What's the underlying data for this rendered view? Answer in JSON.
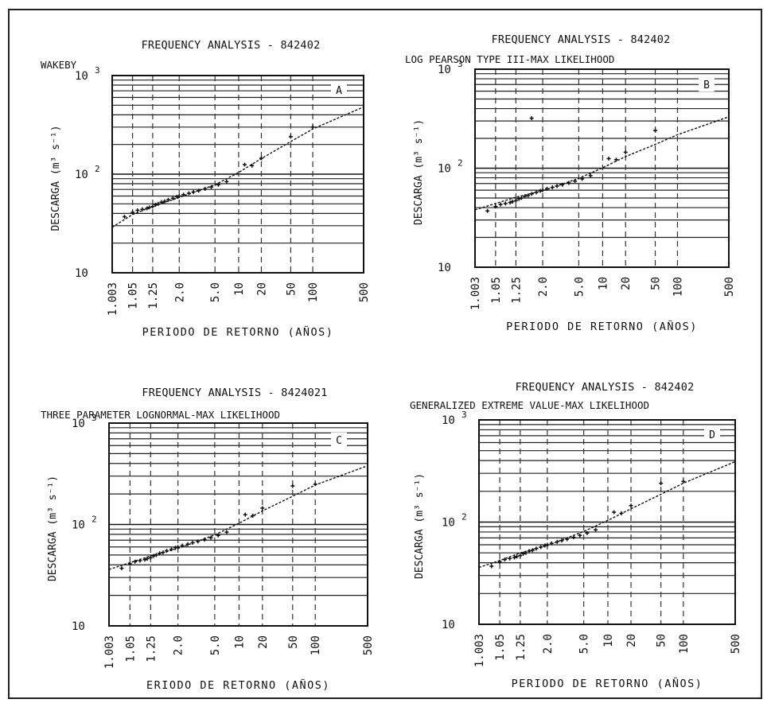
{
  "panels": [
    {
      "title": "FREQUENCY ANALYSIS - 842402",
      "subtitle": "WAKEBY",
      "ylabel": "DESCARGA (m³ s⁻¹)",
      "xlabel": "PERIODO DE RETORNO (AÑOS)",
      "panel_label": "A"
    },
    {
      "title": "FREQUENCY ANALYSIS - 842402",
      "subtitle": "LOG PEARSON TYPE III-MAX LIKELIHOOD",
      "ylabel": "DESCARGA (m³ s⁻¹)",
      "xlabel": "PERIODO DE RETORNO (AÑOS)",
      "panel_label": "B"
    },
    {
      "title": "FREQUENCY ANALYSIS - 8424021",
      "subtitle": "THREE PARAMETER LOGNORMAL-MAX LIKELIHOOD",
      "ylabel": "DESCARGA (m³ s⁻¹)",
      "xlabel": "ERIODO DE RETORNO (AÑOS)",
      "panel_label": "C"
    },
    {
      "title": "FREQUENCY ANALYSIS - 842402",
      "subtitle": "GENERALIZED EXTREME VALUE-MAX LIKELIHOOD",
      "ylabel": "DESCARGA (m³ s⁻¹)",
      "xlabel": "PERIODO DE RETORNO (AÑOS)",
      "panel_label": "D"
    }
  ],
  "axes": {
    "y_ticks": [
      {
        "base": "10",
        "exp": "3",
        "value": 1000
      },
      {
        "base": "10",
        "exp": "2",
        "value": 100
      },
      {
        "base": "10",
        "exp": "",
        "value": 10
      }
    ],
    "x_ticks": [
      "1.003",
      "1.05",
      "1.25",
      "2.0",
      "5.0",
      "10",
      "20",
      "50",
      "100",
      "500"
    ],
    "x_tick_values": [
      1.003,
      1.05,
      1.25,
      2.0,
      5.0,
      10,
      20,
      50,
      100,
      500
    ]
  },
  "chart_data": [
    {
      "type": "scatter",
      "title": "FREQUENCY ANALYSIS - 842402",
      "subtitle": "WAKEBY",
      "xlabel": "PERIODO DE RETORNO (AÑOS)",
      "ylabel": "DESCARGA (m³ s⁻¹)",
      "x_scale": "gumbel probability",
      "y_scale": "log",
      "xlim": [
        1.003,
        500
      ],
      "ylim": [
        10,
        1000
      ],
      "grid": true,
      "series": [
        {
          "x": [
            1.02,
            1.05,
            1.08,
            1.12,
            1.17,
            1.2,
            1.25,
            1.3,
            1.35,
            1.42,
            1.5,
            1.6,
            1.75,
            1.9,
            2.0,
            2.2,
            2.5,
            2.8,
            3.2,
            3.8,
            4.5,
            5.5,
            7,
            12,
            15,
            20,
            50,
            100
          ],
          "y": [
            37,
            41,
            43,
            44,
            45,
            46,
            47,
            49,
            50,
            52,
            53,
            55,
            57,
            59,
            60,
            62,
            64,
            66,
            68,
            71,
            74,
            78,
            84,
            125,
            122,
            145,
            240,
            300
          ]
        },
        {
          "x": [
            1.003,
            1.05,
            1.25,
            2.0,
            5.0,
            10,
            20,
            50,
            100,
            500
          ],
          "y": [
            29,
            39,
            47,
            58,
            78,
            104,
            144,
            214,
            287,
            480
          ]
        }
      ]
    },
    {
      "type": "scatter",
      "title": "FREQUENCY ANALYSIS - 842402",
      "subtitle": "LOG PEARSON TYPE III-MAX LIKELIHOOD",
      "xlabel": "PERIODO DE RETORNO (AÑOS)",
      "ylabel": "DESCARGA (m³ s⁻¹)",
      "x_scale": "gumbel probability",
      "y_scale": "log",
      "xlim": [
        1.003,
        500
      ],
      "ylim": [
        10,
        1000
      ],
      "grid": true,
      "series": [
        {
          "x": [
            1.02,
            1.05,
            1.08,
            1.12,
            1.17,
            1.2,
            1.25,
            1.3,
            1.35,
            1.42,
            1.5,
            1.6,
            1.75,
            1.9,
            2.0,
            2.2,
            2.5,
            2.8,
            3.2,
            3.8,
            4.5,
            5.5,
            7,
            12,
            15,
            20,
            50,
            1.6
          ],
          "y": [
            37,
            41,
            43,
            44,
            45,
            46,
            47,
            49,
            50,
            52,
            53,
            55,
            57,
            59,
            60,
            62,
            64,
            66,
            68,
            71,
            74,
            78,
            84,
            125,
            122,
            145,
            240,
            320
          ]
        },
        {
          "x": [
            1.003,
            1.05,
            1.25,
            2.0,
            5.0,
            10,
            20,
            50,
            100,
            500
          ],
          "y": [
            38,
            44,
            51,
            59,
            79,
            101,
            131,
            174,
            218,
            330
          ]
        }
      ]
    },
    {
      "type": "scatter",
      "title": "FREQUENCY ANALYSIS - 8424021",
      "subtitle": "THREE PARAMETER LOGNORMAL-MAX LIKELIHOOD",
      "xlabel": "ERIODO DE RETORNO (AÑOS)",
      "ylabel": "DESCARGA (m³ s⁻¹)",
      "x_scale": "gumbel probability",
      "y_scale": "log",
      "xlim": [
        1.003,
        500
      ],
      "ylim": [
        10,
        1000
      ],
      "grid": true,
      "series": [
        {
          "x": [
            1.02,
            1.05,
            1.08,
            1.12,
            1.17,
            1.2,
            1.25,
            1.3,
            1.35,
            1.42,
            1.5,
            1.6,
            1.75,
            1.9,
            2.0,
            2.2,
            2.5,
            2.8,
            3.2,
            3.8,
            4.5,
            5.5,
            7,
            12,
            15,
            20,
            50,
            100
          ],
          "y": [
            37,
            41,
            43,
            44,
            45,
            46,
            47,
            49,
            50,
            52,
            53,
            55,
            57,
            59,
            60,
            62,
            64,
            66,
            68,
            71,
            74,
            78,
            84,
            125,
            122,
            145,
            240,
            250
          ]
        },
        {
          "x": [
            1.003,
            1.05,
            1.25,
            2.0,
            5.0,
            10,
            20,
            50,
            100,
            500
          ],
          "y": [
            36,
            42,
            49,
            58,
            79,
            103,
            136,
            190,
            245,
            380
          ]
        }
      ]
    },
    {
      "type": "scatter",
      "title": "FREQUENCY ANALYSIS - 842402",
      "subtitle": "GENERALIZED EXTREME VALUE-MAX LIKELIHOOD",
      "xlabel": "PERIODO DE RETORNO (AÑOS)",
      "ylabel": "DESCARGA (m³ s⁻¹)",
      "x_scale": "gumbel probability",
      "y_scale": "log",
      "xlim": [
        1.003,
        500
      ],
      "ylim": [
        10,
        1000
      ],
      "grid": true,
      "series": [
        {
          "x": [
            1.02,
            1.05,
            1.08,
            1.12,
            1.17,
            1.2,
            1.25,
            1.3,
            1.35,
            1.42,
            1.5,
            1.6,
            1.75,
            1.9,
            2.0,
            2.2,
            2.5,
            2.8,
            3.2,
            3.8,
            4.5,
            5.5,
            7,
            12,
            15,
            20,
            50,
            100
          ],
          "y": [
            37,
            41,
            43,
            44,
            45,
            46,
            47,
            49,
            50,
            52,
            53,
            55,
            57,
            59,
            60,
            62,
            64,
            66,
            68,
            71,
            74,
            78,
            84,
            125,
            122,
            145,
            240,
            250
          ]
        },
        {
          "x": [
            1.003,
            1.05,
            1.25,
            2.0,
            5.0,
            10,
            20,
            50,
            100,
            500
          ],
          "y": [
            36,
            42,
            50,
            59,
            81,
            104,
            135,
            187,
            240,
            390
          ]
        }
      ]
    }
  ]
}
